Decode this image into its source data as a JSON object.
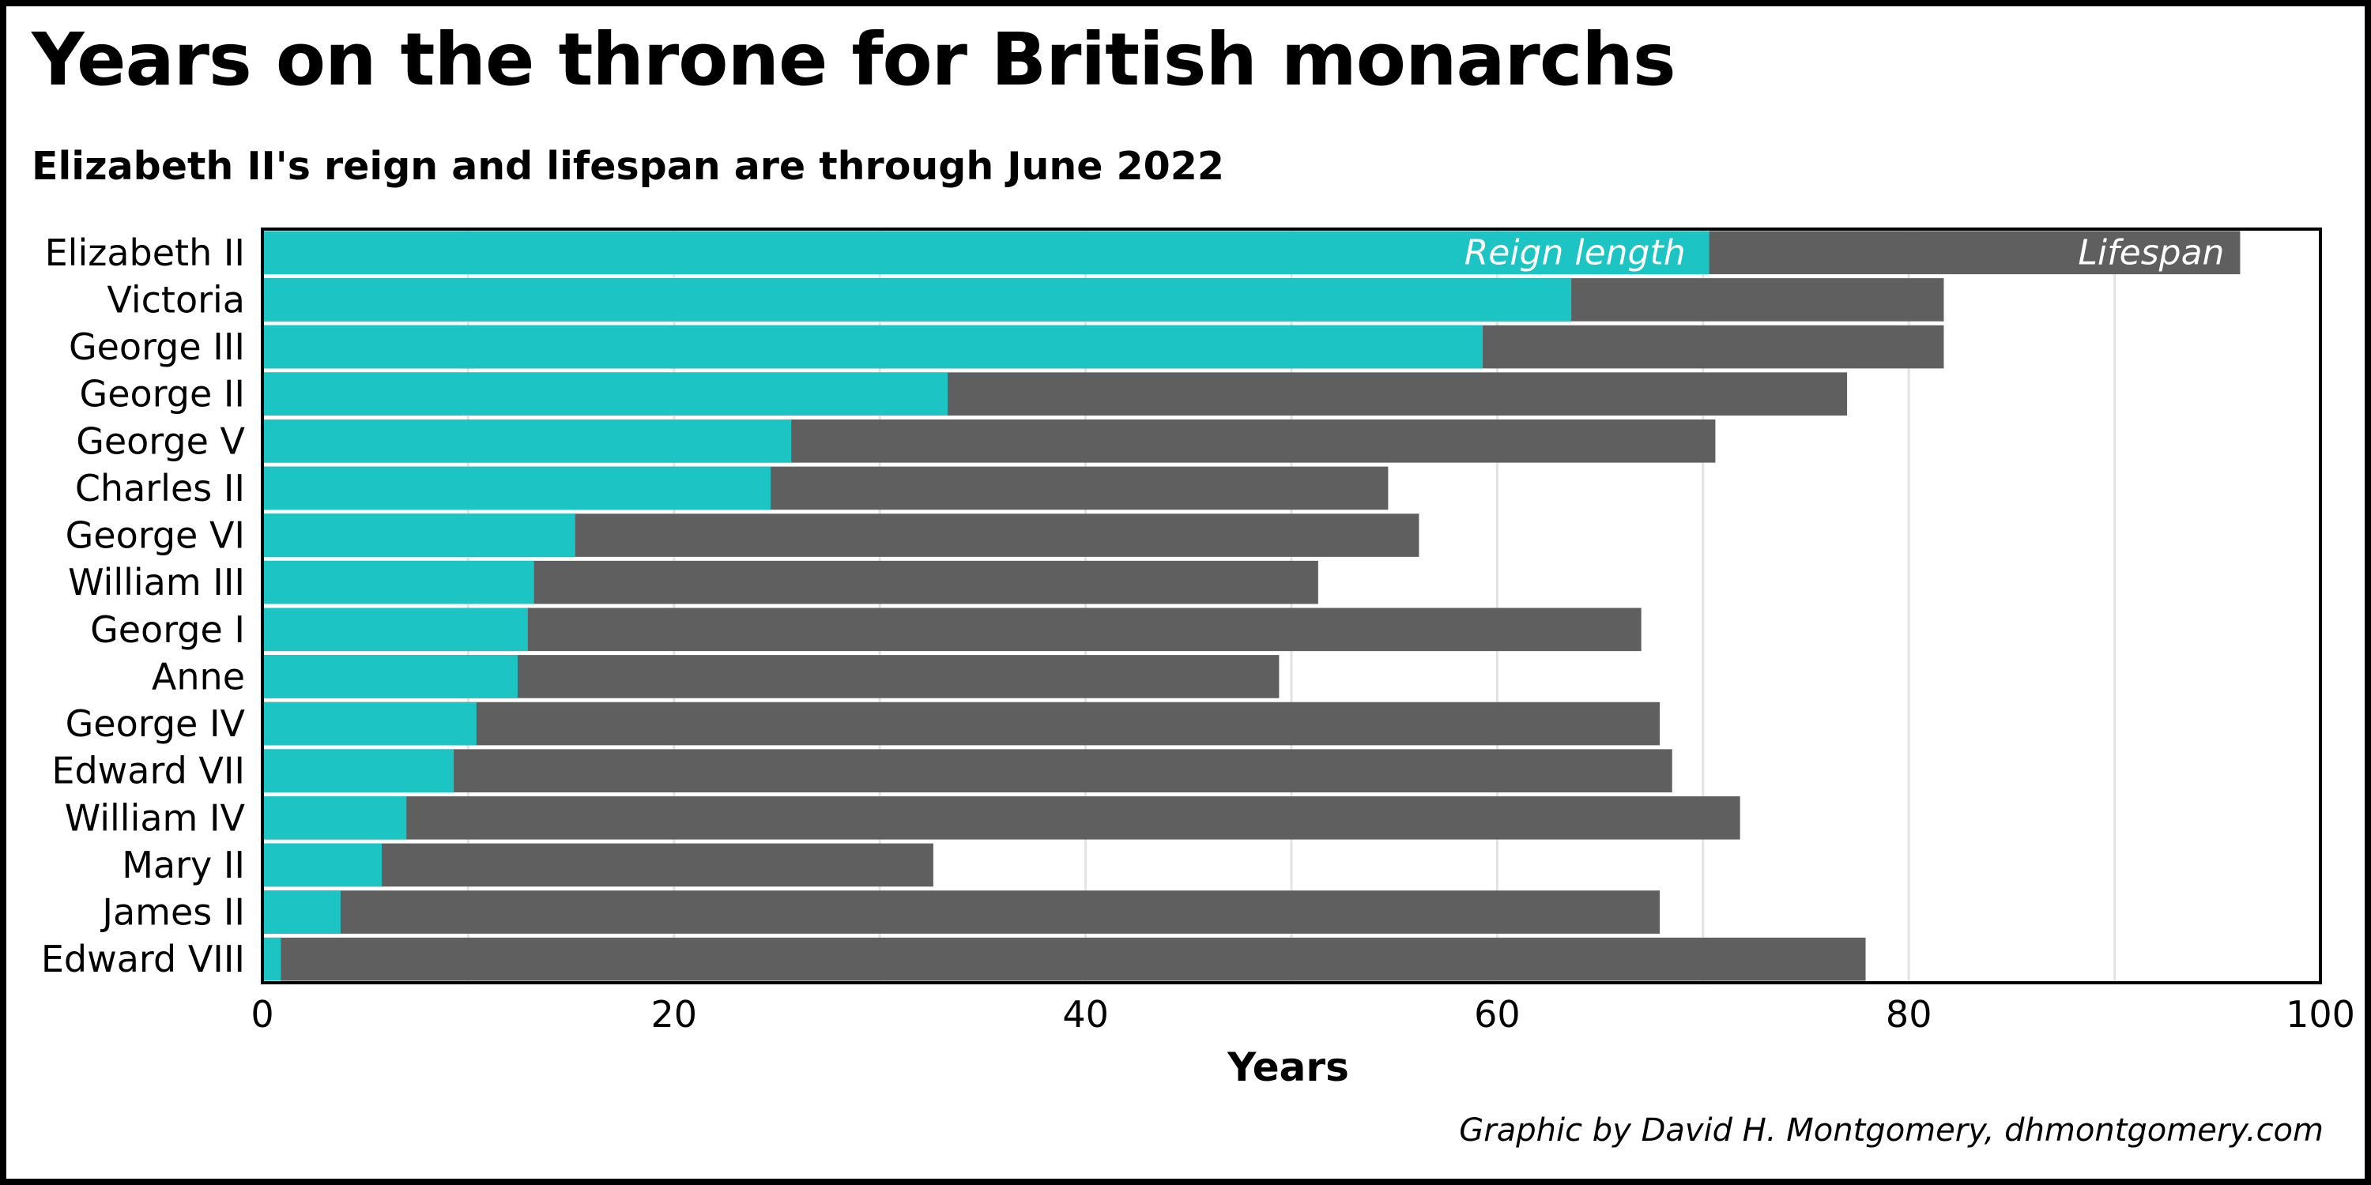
{
  "title": "Years on the throne for British monarchs",
  "subtitle": "Elizabeth II's reign and lifespan are through June 2022",
  "credit": "Graphic by David H. Montgomery, dhmontgomery.com",
  "colors": {
    "reign": "#1cc4c4",
    "lifespan": "#5f5f5f",
    "grid": "#e3e3e3"
  },
  "chart_data": {
    "type": "bar",
    "orientation": "horizontal",
    "categories": [
      "Elizabeth II",
      "Victoria",
      "George III",
      "George II",
      "George V",
      "Charles II",
      "George VI",
      "William III",
      "George I",
      "Anne",
      "George IV",
      "Edward VII",
      "William IV",
      "Mary II",
      "James II",
      "Edward VIII"
    ],
    "series": [
      {
        "name": "Reign length",
        "values": [
          70.3,
          63.6,
          59.3,
          33.3,
          25.7,
          24.7,
          15.2,
          13.2,
          12.9,
          12.4,
          10.4,
          9.3,
          7.0,
          5.8,
          3.8,
          0.9
        ]
      },
      {
        "name": "Lifespan",
        "values": [
          96.1,
          81.7,
          81.7,
          77.0,
          70.6,
          54.7,
          56.2,
          51.3,
          67.0,
          49.4,
          67.9,
          68.5,
          71.8,
          32.6,
          67.9,
          77.9
        ]
      }
    ],
    "xlabel": "Years",
    "xlim": [
      0,
      100
    ],
    "xticks": [
      0,
      20,
      40,
      60,
      80,
      100
    ],
    "grid": true,
    "legend": "inline in top bar"
  }
}
